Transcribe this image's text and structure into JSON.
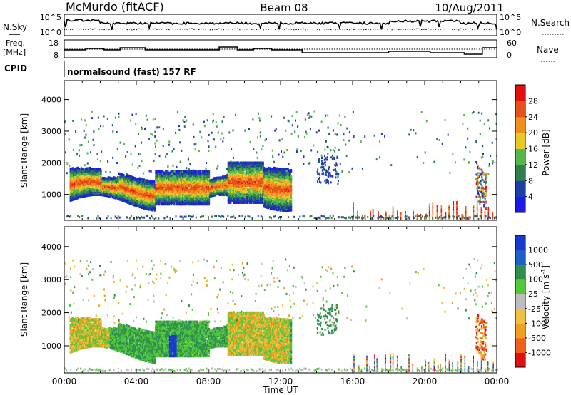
{
  "header": {
    "station": "McMurdo (fitACF)",
    "beam": "Beam 08",
    "date": "10/Aug/2011"
  },
  "strips": {
    "nsky_label": "N.Sky",
    "nsky_ticks": [
      "10^5",
      "10^0"
    ],
    "nsearch_label": "N.Search",
    "nsearch_ticks": [
      "10^5",
      "10^0"
    ],
    "freq_label_1": "Freq.",
    "freq_label_2": "[MHz]",
    "freq_ticks": [
      "18",
      "8"
    ],
    "nave_label": "Nave",
    "nave_ticks": [
      "60",
      "0"
    ],
    "cpid_label": "CPID",
    "cpid_text": "normalsound (fast) 157 RF"
  },
  "chart_data": [
    {
      "type": "heatmap",
      "panel": "power",
      "ylabel": "Slant Range [km]",
      "yticks": [
        1000,
        2000,
        3000,
        4000
      ],
      "ylim": [
        180,
        4600
      ],
      "xlim": [
        0,
        24
      ],
      "colorbar_label": "Power [dB]",
      "colorbar_ticks": [
        "4",
        "8",
        "12",
        "16",
        "20",
        "24",
        "28"
      ],
      "colorbar_colors": [
        "#1a1ae6",
        "#1f3fa8",
        "#2f7f4f",
        "#52b84a",
        "#e6c829",
        "#f0901a",
        "#e8501a",
        "#e01010"
      ]
    },
    {
      "type": "heatmap",
      "panel": "velocity",
      "ylabel": "Slant Range [km]",
      "yticks": [
        1000,
        2000,
        3000,
        4000
      ],
      "ylim": [
        180,
        4600
      ],
      "xlim": [
        0,
        24
      ],
      "xlabel": "Time UT",
      "xticks": [
        "00:00",
        "04:00",
        "08:00",
        "12:00",
        "16:00",
        "20:00",
        "00:00"
      ],
      "colorbar_label": "Velocity [m s",
      "colorbar_superscript": "-1",
      "colorbar_label_tail": "]",
      "colorbar_ticks": [
        "-1000",
        "-500",
        "-100",
        "-25",
        "25",
        "100",
        "500",
        "1000"
      ],
      "colorbar_colors": [
        "#e01010",
        "#f0601a",
        "#f0a020",
        "#f0c040",
        "#bdbdbd",
        "#52c83a",
        "#2f8f4f",
        "#1f5fc8",
        "#1a3acc"
      ]
    }
  ]
}
